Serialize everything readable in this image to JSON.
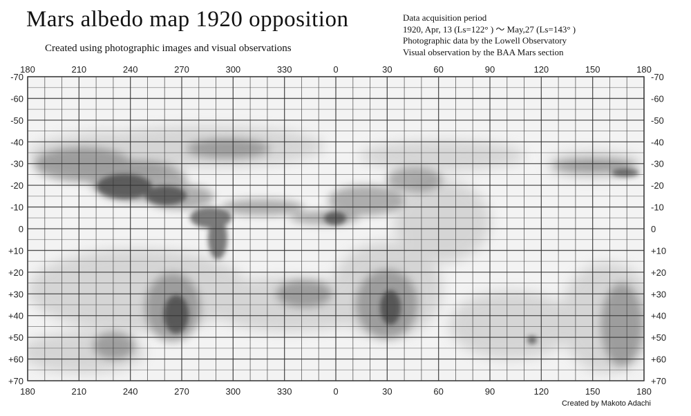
{
  "title": "Mars albedo map 1920 opposition",
  "subtitle": "Created using photographic images and visual observations",
  "info": {
    "line1": "Data acquisition period",
    "line2": "1920, Apr, 13 (Ls=122° ) ～ May,27 (Ls=143° )",
    "line3": "Photographic data by the Lowell Observatory",
    "line4": "Visual observation by the BAA Mars section"
  },
  "credit": "Created by Makoto Adachi",
  "map": {
    "longitude_labels": [
      "180",
      "210",
      "240",
      "270",
      "300",
      "330",
      "0",
      "30",
      "60",
      "90",
      "120",
      "150",
      "180"
    ],
    "latitude_labels": [
      "-70",
      "-60",
      "-50",
      "-40",
      "-30",
      "-20",
      "-10",
      "0",
      "+10",
      "+20",
      "+30",
      "+40",
      "+50",
      "+60",
      "+70"
    ],
    "longitude_values": [
      180,
      210,
      240,
      270,
      300,
      330,
      360,
      390,
      420,
      450,
      480,
      510,
      540
    ],
    "latitude_values": [
      -70,
      -60,
      -50,
      -40,
      -30,
      -20,
      -10,
      0,
      10,
      20,
      30,
      40,
      50,
      60,
      70
    ],
    "colors": {
      "paper": "#f3f3f3",
      "grid": "#333333",
      "shading": "#3a3a3a"
    }
  }
}
